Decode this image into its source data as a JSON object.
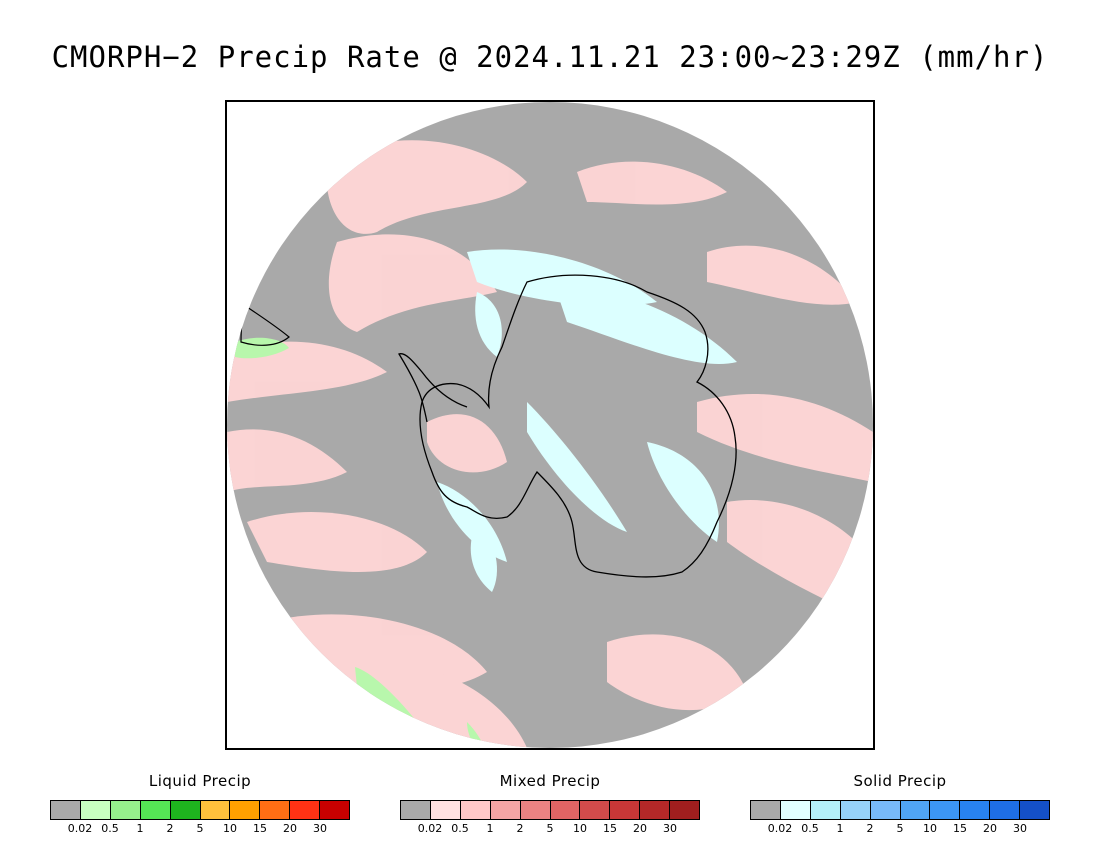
{
  "title": "CMORPH−2 Precip Rate @ 2024.11.21 23:00~23:29Z (mm/hr)",
  "colors": {
    "background": "#ffffff",
    "no_precip": "#a9a9a9",
    "frame": "#000000",
    "coastline": "#000000"
  },
  "map": {
    "projection": "south-polar stereographic",
    "region": "Antarctica and Southern Ocean"
  },
  "legends": [
    {
      "id": "liquid",
      "title": "Liquid Precip",
      "colors": [
        "#a9a9a9",
        "#c8ffc0",
        "#96f08c",
        "#55e655",
        "#1eb41e",
        "#ffc03c",
        "#ffa000",
        "#ff6e14",
        "#ff3214",
        "#c80000"
      ],
      "ticks": [
        "0.02",
        "0.5",
        "1",
        "2",
        "5",
        "10",
        "15",
        "20",
        "30"
      ]
    },
    {
      "id": "mixed",
      "title": "Mixed Precip",
      "colors": [
        "#a9a9a9",
        "#ffe1e1",
        "#ffc8c8",
        "#f5a5a5",
        "#eb8282",
        "#e16464",
        "#d24b4b",
        "#c83737",
        "#b42828",
        "#a01e1e"
      ],
      "ticks": [
        "0.02",
        "0.5",
        "1",
        "2",
        "5",
        "10",
        "15",
        "20",
        "30"
      ]
    },
    {
      "id": "solid",
      "title": "Solid Precip",
      "colors": [
        "#a9a9a9",
        "#e1ffff",
        "#b4f0fa",
        "#96d2fa",
        "#78b9fa",
        "#50a5f5",
        "#3c96f5",
        "#2882f0",
        "#1e6ee6",
        "#1450c8"
      ],
      "ticks": [
        "0.02",
        "0.5",
        "1",
        "2",
        "5",
        "10",
        "15",
        "20",
        "30"
      ]
    }
  ]
}
